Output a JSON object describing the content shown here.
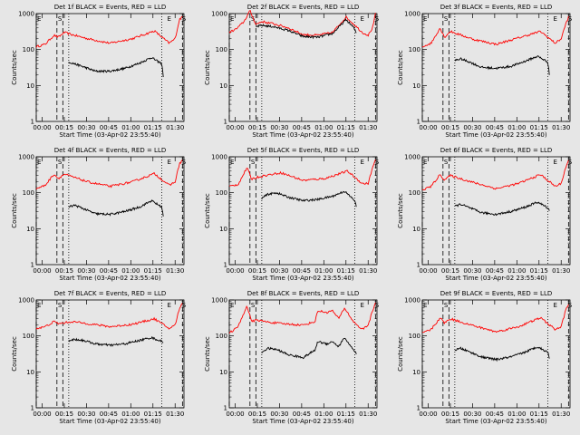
{
  "chart_data": [
    {
      "type": "line",
      "title": "Det 1f BLACK = Events, RED = LLD",
      "xlabel": "Start Time (03-Apr-02 23:55:40)",
      "ylabel": "Counts/sec",
      "yscale": "log",
      "ylim": [
        1,
        1000
      ],
      "xlim": [
        0,
        100
      ],
      "ytick_labels": [
        "1",
        "10",
        "100",
        "1000"
      ],
      "xtick_labels": [
        "00:00",
        "00:15",
        "00:30",
        "00:45",
        "01:00",
        "01:15",
        "01:30"
      ],
      "xtick_values": [
        4,
        19,
        34,
        49,
        64,
        79,
        94
      ],
      "markers": [
        {
          "label": "E",
          "x": 0
        },
        {
          "label": "S",
          "x": 14
        },
        {
          "label": "E",
          "x": 88
        },
        {
          "label": "S",
          "x": 98
        }
      ],
      "dashed_lines": [
        0,
        14,
        18,
        99
      ],
      "dotted_lines": [
        22,
        85
      ],
      "series": [
        {
          "color": "#ff0000",
          "x": [
            0,
            6,
            12,
            15,
            19,
            24,
            35,
            50,
            65,
            80,
            90,
            94,
            97,
            99
          ],
          "y": [
            120,
            140,
            250,
            220,
            300,
            260,
            200,
            150,
            200,
            330,
            150,
            200,
            700,
            800
          ]
        },
        {
          "color": "#000000",
          "x": [
            22,
            26,
            32,
            40,
            50,
            60,
            70,
            78,
            85,
            86
          ],
          "y": [
            45,
            40,
            33,
            25,
            25,
            30,
            42,
            60,
            40,
            18
          ]
        }
      ]
    },
    {
      "type": "line",
      "title": "Det 2f BLACK = Events, RED = LLD",
      "xlabel": "Start Time (03-Apr-02 23:55:40)",
      "ylabel": "Counts/sec",
      "yscale": "log",
      "ylim": [
        1,
        1000
      ],
      "xlim": [
        0,
        100
      ],
      "ytick_labels": [
        "1",
        "10",
        "100",
        "1000"
      ],
      "xtick_labels": [
        "00:00",
        "00:15",
        "00:30",
        "00:45",
        "01:00",
        "01:15",
        "01:30"
      ],
      "xtick_values": [
        4,
        19,
        34,
        49,
        64,
        79,
        94
      ],
      "markers": [
        {
          "label": "E",
          "x": 0
        },
        {
          "label": "S",
          "x": 14
        },
        {
          "label": "E",
          "x": 88
        },
        {
          "label": "S",
          "x": 98
        }
      ],
      "dashed_lines": [
        0,
        14,
        18,
        99
      ],
      "dotted_lines": [
        22,
        85
      ],
      "series": [
        {
          "color": "#ff0000",
          "x": [
            0,
            5,
            10,
            14,
            18,
            22,
            30,
            40,
            50,
            60,
            70,
            79,
            84,
            90,
            94,
            97,
            99
          ],
          "y": [
            300,
            380,
            600,
            1200,
            500,
            600,
            520,
            400,
            260,
            250,
            300,
            800,
            520,
            300,
            250,
            400,
            1000
          ]
        },
        {
          "color": "#000000",
          "x": [
            18,
            22,
            30,
            40,
            50,
            60,
            70,
            79,
            84,
            86
          ],
          "y": [
            430,
            470,
            430,
            340,
            230,
            220,
            280,
            680,
            420,
            290
          ]
        }
      ]
    },
    {
      "type": "line",
      "title": "Det 3f BLACK = Events, RED = LLD",
      "xlabel": "Start Time (03-Apr-02 23:55:40)",
      "ylabel": "Counts/sec",
      "yscale": "log",
      "ylim": [
        1,
        1000
      ],
      "xlim": [
        0,
        100
      ],
      "ytick_labels": [
        "1",
        "10",
        "100",
        "1000"
      ],
      "xtick_labels": [
        "00:00",
        "00:15",
        "00:30",
        "00:45",
        "01:00",
        "01:15",
        "01:30"
      ],
      "xtick_values": [
        4,
        19,
        34,
        49,
        64,
        79,
        94
      ],
      "markers": [
        {
          "label": "E",
          "x": 0
        },
        {
          "label": "S",
          "x": 14
        },
        {
          "label": "E",
          "x": 88
        },
        {
          "label": "S",
          "x": 98
        }
      ],
      "dashed_lines": [
        0,
        14,
        18,
        99
      ],
      "dotted_lines": [
        22,
        85
      ],
      "series": [
        {
          "color": "#ff0000",
          "x": [
            0,
            6,
            12,
            15,
            19,
            24,
            35,
            50,
            65,
            80,
            90,
            94,
            97,
            99
          ],
          "y": [
            120,
            150,
            400,
            220,
            320,
            270,
            190,
            140,
            210,
            320,
            150,
            200,
            500,
            800
          ]
        },
        {
          "color": "#000000",
          "x": [
            22,
            26,
            32,
            40,
            50,
            60,
            70,
            78,
            85,
            86
          ],
          "y": [
            50,
            55,
            45,
            32,
            30,
            34,
            48,
            65,
            45,
            20
          ]
        }
      ]
    },
    {
      "type": "line",
      "title": "Det 4f BLACK = Events, RED = LLD",
      "xlabel": "Start Time (03-Apr-02 23:55:40)",
      "ylabel": "Counts/sec",
      "yscale": "log",
      "ylim": [
        1,
        1000
      ],
      "xlim": [
        0,
        100
      ],
      "ytick_labels": [
        "1",
        "10",
        "100",
        "1000"
      ],
      "xtick_labels": [
        "00:00",
        "00:15",
        "00:30",
        "00:45",
        "01:00",
        "01:15",
        "01:30"
      ],
      "xtick_values": [
        4,
        19,
        34,
        49,
        64,
        79,
        94
      ],
      "markers": [
        {
          "label": "E",
          "x": 0
        },
        {
          "label": "S",
          "x": 14
        },
        {
          "label": "E",
          "x": 88
        },
        {
          "label": "S",
          "x": 98
        }
      ],
      "dashed_lines": [
        0,
        14,
        18,
        99
      ],
      "dotted_lines": [
        22,
        85
      ],
      "series": [
        {
          "color": "#ff0000",
          "x": [
            0,
            6,
            12,
            15,
            19,
            24,
            35,
            50,
            65,
            80,
            90,
            94,
            97,
            99
          ],
          "y": [
            130,
            160,
            330,
            250,
            330,
            280,
            200,
            150,
            200,
            340,
            160,
            200,
            650,
            800
          ]
        },
        {
          "color": "#000000",
          "x": [
            22,
            26,
            32,
            40,
            50,
            60,
            70,
            78,
            85,
            86
          ],
          "y": [
            40,
            45,
            36,
            26,
            25,
            30,
            40,
            60,
            40,
            22
          ]
        }
      ]
    },
    {
      "type": "line",
      "title": "Det 5f BLACK = Events, RED = LLD",
      "xlabel": "Start Time (03-Apr-02 23:55:40)",
      "ylabel": "Counts/sec",
      "yscale": "log",
      "ylim": [
        1,
        1000
      ],
      "xlim": [
        0,
        100
      ],
      "ytick_labels": [
        "1",
        "10",
        "100",
        "1000"
      ],
      "xtick_labels": [
        "00:00",
        "00:15",
        "00:30",
        "00:45",
        "01:00",
        "01:15",
        "01:30"
      ],
      "xtick_values": [
        4,
        19,
        34,
        49,
        64,
        79,
        94
      ],
      "markers": [
        {
          "label": "E",
          "x": 0
        },
        {
          "label": "S",
          "x": 14
        },
        {
          "label": "E",
          "x": 88
        },
        {
          "label": "S",
          "x": 98
        }
      ],
      "dashed_lines": [
        0,
        14,
        18,
        99
      ],
      "dotted_lines": [
        22,
        85
      ],
      "series": [
        {
          "color": "#ff0000",
          "x": [
            0,
            6,
            12,
            15,
            19,
            24,
            35,
            50,
            65,
            80,
            90,
            94,
            97,
            99
          ],
          "y": [
            150,
            170,
            500,
            240,
            270,
            300,
            360,
            220,
            250,
            400,
            180,
            180,
            500,
            800
          ]
        },
        {
          "color": "#000000",
          "x": [
            22,
            26,
            32,
            40,
            50,
            60,
            70,
            78,
            85,
            86
          ],
          "y": [
            70,
            90,
            100,
            75,
            60,
            65,
            80,
            110,
            60,
            40
          ]
        }
      ]
    },
    {
      "type": "line",
      "title": "Det 6f BLACK = Events, RED = LLD",
      "xlabel": "Start Time (03-Apr-02 23:55:40)",
      "ylabel": "Counts/sec",
      "yscale": "log",
      "ylim": [
        1,
        1000
      ],
      "xlim": [
        0,
        100
      ],
      "ytick_labels": [
        "1",
        "10",
        "100",
        "1000"
      ],
      "xtick_labels": [
        "00:00",
        "00:15",
        "00:30",
        "00:45",
        "01:00",
        "01:15",
        "01:30"
      ],
      "xtick_values": [
        4,
        19,
        34,
        49,
        64,
        79,
        94
      ],
      "markers": [
        {
          "label": "E",
          "x": 0
        },
        {
          "label": "S",
          "x": 14
        },
        {
          "label": "E",
          "x": 88
        },
        {
          "label": "S",
          "x": 98
        }
      ],
      "dashed_lines": [
        0,
        14,
        18,
        99
      ],
      "dotted_lines": [
        22,
        85
      ],
      "series": [
        {
          "color": "#ff0000",
          "x": [
            0,
            6,
            12,
            15,
            19,
            24,
            35,
            50,
            65,
            80,
            90,
            94,
            97,
            99
          ],
          "y": [
            120,
            150,
            320,
            230,
            300,
            260,
            190,
            130,
            180,
            320,
            150,
            180,
            500,
            800
          ]
        },
        {
          "color": "#000000",
          "x": [
            22,
            26,
            32,
            40,
            50,
            60,
            70,
            78,
            85,
            86
          ],
          "y": [
            42,
            48,
            38,
            28,
            25,
            30,
            40,
            55,
            38,
            32
          ]
        }
      ]
    },
    {
      "type": "line",
      "title": "Det 7f BLACK = Events, RED = LLD",
      "xlabel": "Start Time (03-Apr-02 23:55:40)",
      "ylabel": "Counts/sec",
      "yscale": "log",
      "ylim": [
        1,
        1000
      ],
      "xlim": [
        0,
        100
      ],
      "ytick_labels": [
        "1",
        "10",
        "100",
        "1000"
      ],
      "xtick_labels": [
        "00:00",
        "00:15",
        "00:30",
        "00:45",
        "01:00",
        "01:15",
        "01:30"
      ],
      "xtick_values": [
        4,
        19,
        34,
        49,
        64,
        79,
        94
      ],
      "markers": [
        {
          "label": "E",
          "x": 0
        },
        {
          "label": "S",
          "x": 14
        },
        {
          "label": "E",
          "x": 88
        },
        {
          "label": "S",
          "x": 98
        }
      ],
      "dashed_lines": [
        0,
        14,
        18,
        99
      ],
      "dotted_lines": [
        22,
        85
      ],
      "series": [
        {
          "color": "#ff0000",
          "x": [
            0,
            6,
            12,
            15,
            19,
            24,
            35,
            50,
            65,
            80,
            90,
            94,
            97,
            99
          ],
          "y": [
            160,
            180,
            250,
            220,
            230,
            250,
            220,
            180,
            210,
            300,
            160,
            200,
            600,
            800
          ]
        },
        {
          "color": "#000000",
          "x": [
            22,
            26,
            32,
            40,
            50,
            60,
            70,
            78,
            85,
            86
          ],
          "y": [
            75,
            80,
            75,
            60,
            55,
            60,
            75,
            90,
            70,
            68
          ]
        }
      ]
    },
    {
      "type": "line",
      "title": "Det 8f BLACK = Events, RED = LLD",
      "xlabel": "Start Time (03-Apr-02 23:55:40)",
      "ylabel": "Counts/sec",
      "yscale": "log",
      "ylim": [
        1,
        1000
      ],
      "xlim": [
        0,
        100
      ],
      "ytick_labels": [
        "1",
        "10",
        "100",
        "1000"
      ],
      "xtick_labels": [
        "00:00",
        "00:15",
        "00:30",
        "00:45",
        "01:00",
        "01:15",
        "01:30"
      ],
      "xtick_values": [
        4,
        19,
        34,
        49,
        64,
        79,
        94
      ],
      "markers": [
        {
          "label": "E",
          "x": 0
        },
        {
          "label": "S",
          "x": 14
        },
        {
          "label": "E",
          "x": 88
        },
        {
          "label": "S",
          "x": 98
        }
      ],
      "dashed_lines": [
        0,
        14,
        18,
        99
      ],
      "dotted_lines": [
        22,
        85
      ],
      "series": [
        {
          "color": "#ff0000",
          "x": [
            0,
            6,
            12,
            15,
            19,
            24,
            35,
            50,
            58,
            60,
            66,
            70,
            74,
            78,
            84,
            90,
            94,
            97,
            99
          ],
          "y": [
            120,
            180,
            700,
            250,
            280,
            250,
            220,
            200,
            250,
            500,
            450,
            500,
            300,
            600,
            250,
            150,
            200,
            500,
            800
          ]
        },
        {
          "color": "#000000",
          "x": [
            22,
            26,
            32,
            40,
            50,
            58,
            60,
            66,
            70,
            74,
            78,
            84,
            86
          ],
          "y": [
            35,
            45,
            42,
            30,
            25,
            40,
            70,
            60,
            70,
            50,
            90,
            40,
            32
          ]
        }
      ]
    },
    {
      "type": "line",
      "title": "Det 9f BLACK = Events, RED = LLD",
      "xlabel": "Start Time (03-Apr-02 23:55:40)",
      "ylabel": "Counts/sec",
      "yscale": "log",
      "ylim": [
        1,
        1000
      ],
      "xlim": [
        0,
        100
      ],
      "ytick_labels": [
        "1",
        "10",
        "100",
        "1000"
      ],
      "xtick_labels": [
        "00:00",
        "00:15",
        "00:30",
        "00:45",
        "01:00",
        "01:15",
        "01:30"
      ],
      "xtick_values": [
        4,
        19,
        34,
        49,
        64,
        79,
        94
      ],
      "markers": [
        {
          "label": "E",
          "x": 0
        },
        {
          "label": "S",
          "x": 14
        },
        {
          "label": "E",
          "x": 88
        },
        {
          "label": "S",
          "x": 98
        }
      ],
      "dashed_lines": [
        0,
        14,
        18,
        99
      ],
      "dotted_lines": [
        22,
        85
      ],
      "series": [
        {
          "color": "#ff0000",
          "x": [
            0,
            6,
            12,
            15,
            19,
            24,
            35,
            50,
            65,
            80,
            90,
            94,
            97,
            99
          ],
          "y": [
            120,
            150,
            320,
            230,
            300,
            260,
            190,
            130,
            180,
            320,
            150,
            180,
            500,
            800
          ]
        },
        {
          "color": "#000000",
          "x": [
            22,
            26,
            32,
            40,
            50,
            60,
            70,
            78,
            85,
            86
          ],
          "y": [
            40,
            45,
            36,
            26,
            22,
            26,
            36,
            50,
            35,
            25
          ]
        }
      ]
    }
  ]
}
